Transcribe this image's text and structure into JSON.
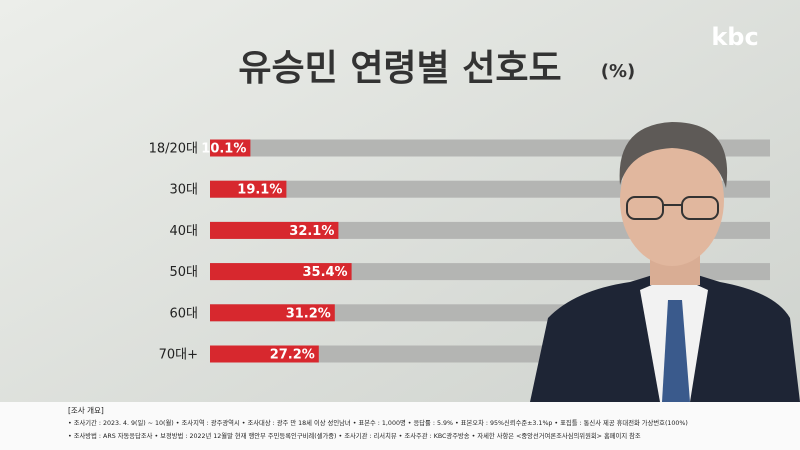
{
  "chart_data": {
    "type": "bar",
    "orientation": "horizontal",
    "title": "유승민 연령별 선호도",
    "unit_label": "(%)",
    "categories": [
      "18/20대",
      "30대",
      "40대",
      "50대",
      "60대",
      "70대+"
    ],
    "values": [
      10.1,
      19.1,
      32.1,
      35.4,
      31.2,
      27.2
    ],
    "value_labels": [
      "10.1%",
      "19.1%",
      "32.1%",
      "35.4%",
      "31.2%",
      "27.2%"
    ],
    "color": "#d7282e",
    "track_color": "#b4b5b3"
  },
  "logo": "kbc",
  "notes": {
    "heading": "[조사 개요]",
    "lines": [
      "• 조사기간 : 2023. 4. 9(일) ~ 10(월)   • 조사지역 : 광주광역시   • 조사대상 : 광주 만 18세 이상 성인남녀   • 표본수 : 1,000명   • 응답률 : 5.9%   • 표본오차 : 95%신뢰수준±3.1%p   • 표집틀 : 통신사 제공 휴대전화 가상번호(100%)",
      "• 조사방법 : ARS 자동응답조사   • 보정방법 : 2022년 12월말 현재 행안부 주민등록인구비례(셀가중)   • 조사기관 : 리서치뷰   • 조사주관 : KBC광주방송   • 자세한 사항은 <중앙선거여론조사심의위원회> 홈페이지 참조"
    ]
  }
}
